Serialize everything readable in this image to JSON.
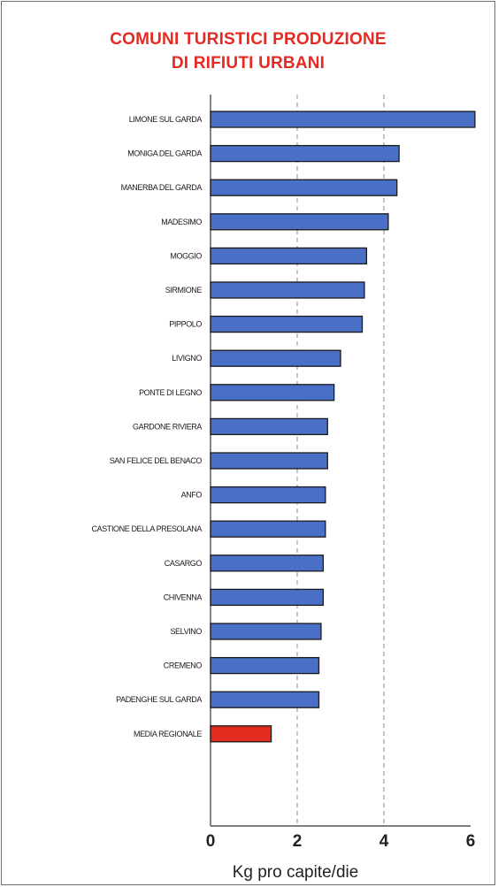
{
  "title_lines": [
    "COMUNI TURISTICI PRODUZIONE",
    "DI RIFIUTI URBANI"
  ],
  "colors": {
    "title": "#e42a23",
    "bar": "#4a6fc7",
    "highlight": "#e32b1f",
    "outline": "#1a1a1a"
  },
  "chart_data": {
    "type": "bar",
    "orientation": "horizontal",
    "title": "COMUNI TURISTICI PRODUZIONE DI RIFIUTI URBANI",
    "xlabel": "Kg pro capite/die",
    "ylabel": "",
    "xlim": [
      0,
      6
    ],
    "xticks": [
      0,
      2,
      4,
      6
    ],
    "grid": "dashed vertical lines at 2 and 4",
    "categories": [
      "LIMONE SUL GARDA",
      "MONIGA DEL GARDA",
      "MANERBA DEL GARDA",
      "MADESIMO",
      "MOGGIO",
      "SIRMIONE",
      "PIPPOLO",
      "LIVIGNO",
      "PONTE DI LEGNO",
      "GARDONE RIVIERA",
      "SAN FELICE DEL BENACO",
      "ANFO",
      "CASTIONE DELLA PRESOLANA",
      "CASARGO",
      "CHIVENNA",
      "SELVINO",
      "CREMENO",
      "PADENGHE SUL GARDA",
      "MEDIA REGIONALE"
    ],
    "values": [
      6.1,
      4.35,
      4.3,
      4.1,
      3.6,
      3.55,
      3.5,
      3.0,
      2.85,
      2.7,
      2.7,
      2.65,
      2.65,
      2.6,
      2.6,
      2.55,
      2.5,
      2.5,
      1.4
    ],
    "highlight": "MEDIA REGIONALE"
  }
}
